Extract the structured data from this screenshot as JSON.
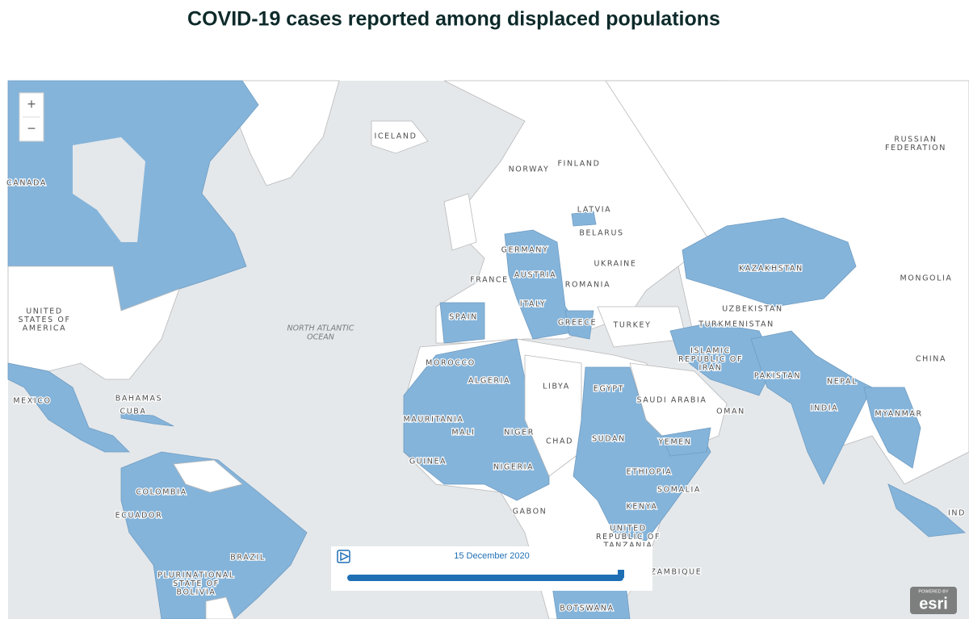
{
  "title": "COVID-19 cases reported among displaced populations",
  "zoom_controls": {
    "zoom_in": "+",
    "zoom_out": "−"
  },
  "map": {
    "labels": [
      {
        "lines": [
          "ICELAND"
        ]
      },
      {
        "lines": [
          "NORWAY"
        ]
      },
      {
        "lines": [
          "FINLAND"
        ]
      },
      {
        "lines": [
          "RUSSIAN",
          "FEDERATION"
        ]
      },
      {
        "lines": [
          "CANADA"
        ]
      },
      {
        "lines": [
          "LATVIA"
        ]
      },
      {
        "lines": [
          "BELARUS"
        ]
      },
      {
        "lines": [
          "GERMANY"
        ]
      },
      {
        "lines": [
          "UKRAINE"
        ]
      },
      {
        "lines": [
          "FRANCE"
        ]
      },
      {
        "lines": [
          "AUSTRIA"
        ]
      },
      {
        "lines": [
          "ROMANIA"
        ]
      },
      {
        "lines": [
          "MONGOLIA"
        ]
      },
      {
        "lines": [
          "KAZAKHSTAN"
        ]
      },
      {
        "lines": [
          "UNITED",
          "STATES OF",
          "AMERICA"
        ]
      },
      {
        "lines": [
          "ITALY"
        ]
      },
      {
        "lines": [
          "SPAIN"
        ]
      },
      {
        "lines": [
          "UZBEKISTAN"
        ]
      },
      {
        "lines": [
          "GREECE"
        ]
      },
      {
        "lines": [
          "TURKEY"
        ]
      },
      {
        "lines": [
          "TURKMENISTAN"
        ]
      },
      {
        "lines": [
          "ISLAMIC",
          "REPUBLIC OF",
          "IRAN"
        ]
      },
      {
        "lines": [
          "CHINA"
        ]
      },
      {
        "lines": [
          "MOROCCO"
        ]
      },
      {
        "lines": [
          "PAKISTAN"
        ]
      },
      {
        "lines": [
          "ALGERIA"
        ]
      },
      {
        "lines": [
          "LIBYA"
        ]
      },
      {
        "lines": [
          "EGYPT"
        ]
      },
      {
        "lines": [
          "NEPAL"
        ]
      },
      {
        "lines": [
          "MEXICO"
        ]
      },
      {
        "lines": [
          "BAHAMAS"
        ]
      },
      {
        "lines": [
          "SAUDI ARABIA"
        ]
      },
      {
        "lines": [
          "CUBA"
        ]
      },
      {
        "lines": [
          "OMAN"
        ]
      },
      {
        "lines": [
          "INDIA"
        ]
      },
      {
        "lines": [
          "MAURITANIA"
        ]
      },
      {
        "lines": [
          "MYANMAR"
        ]
      },
      {
        "lines": [
          "MALI"
        ]
      },
      {
        "lines": [
          "NIGER"
        ]
      },
      {
        "lines": [
          "CHAD"
        ]
      },
      {
        "lines": [
          "SUDAN"
        ]
      },
      {
        "lines": [
          "YEMEN"
        ]
      },
      {
        "lines": [
          "GUINEA"
        ]
      },
      {
        "lines": [
          "NIGERIA"
        ]
      },
      {
        "lines": [
          "ETHIOPIA"
        ]
      },
      {
        "lines": [
          "COLOMBIA"
        ]
      },
      {
        "lines": [
          "SOMALIA"
        ]
      },
      {
        "lines": [
          "ECUADOR"
        ]
      },
      {
        "lines": [
          "GABON"
        ]
      },
      {
        "lines": [
          "KENYA"
        ]
      },
      {
        "lines": [
          "UNITED",
          "REPUBLIC OF",
          "TANZANIA"
        ]
      },
      {
        "lines": [
          "BRAZIL"
        ]
      },
      {
        "lines": [
          "MOZAMBIQUE"
        ]
      },
      {
        "lines": [
          "PLURINATIONAL",
          "STATE OF",
          "BOLIVIA"
        ]
      },
      {
        "lines": [
          "BOTSWANA"
        ]
      },
      {
        "lines": [
          "IND"
        ]
      }
    ],
    "ocean_label": [
      "NORTH ATLANTIC",
      "OCEAN"
    ]
  },
  "time_slider": {
    "date": "15 December 2020"
  },
  "attribution": {
    "powered_by": "POWERED BY",
    "logo": "esri"
  }
}
